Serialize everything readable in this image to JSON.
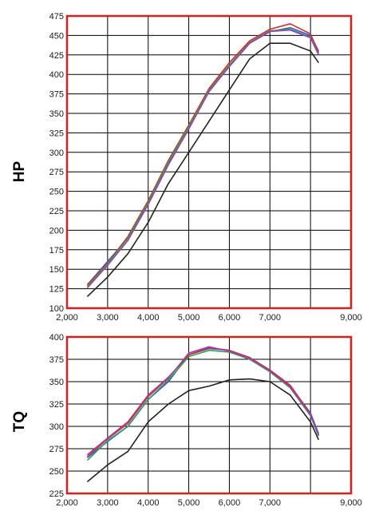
{
  "colors": {
    "frame": "#d62020",
    "grid": "#000000",
    "series": [
      "#222222",
      "#2a5fd6",
      "#d62a2a",
      "#3aa03a",
      "#9a3ec2"
    ]
  },
  "chart_data": [
    {
      "type": "line",
      "ylabel": "HP",
      "xlim": [
        2000,
        9000
      ],
      "ylim": [
        100,
        475
      ],
      "grid": true,
      "x_ticks": [
        2000,
        3000,
        4000,
        5000,
        6000,
        7000,
        8000,
        9000
      ],
      "x_tick_labels": [
        "2,000",
        "3,000",
        "4,000",
        "5,000",
        "6,000",
        "7,000",
        "",
        "9,000"
      ],
      "y_ticks": [
        100,
        125,
        150,
        175,
        200,
        225,
        250,
        275,
        300,
        325,
        350,
        375,
        400,
        425,
        450,
        475
      ],
      "y_tick_labels": [
        "100",
        "125",
        "150",
        "175",
        "200",
        "225",
        "250",
        "275",
        "300",
        "325",
        "350",
        "375",
        "400",
        "425",
        "450",
        "475"
      ],
      "x": [
        2500,
        3000,
        3500,
        4000,
        4500,
        5000,
        5500,
        6000,
        6500,
        7000,
        7500,
        8000,
        8200
      ],
      "series": [
        {
          "values": [
            115,
            140,
            170,
            210,
            260,
            300,
            340,
            380,
            420,
            440,
            440,
            430,
            415
          ]
        },
        {
          "values": [
            130,
            160,
            190,
            235,
            285,
            330,
            380,
            410,
            440,
            455,
            460,
            450,
            430
          ]
        },
        {
          "values": [
            130,
            158,
            192,
            238,
            290,
            335,
            382,
            415,
            443,
            458,
            465,
            452,
            428
          ]
        },
        {
          "values": [
            128,
            157,
            190,
            236,
            288,
            333,
            380,
            412,
            441,
            456,
            458,
            448,
            426
          ]
        },
        {
          "values": [
            126,
            155,
            187,
            233,
            284,
            330,
            378,
            410,
            440,
            455,
            457,
            447,
            425
          ]
        }
      ]
    },
    {
      "type": "line",
      "ylabel": "TQ",
      "xlim": [
        2000,
        9000
      ],
      "ylim": [
        225,
        400
      ],
      "grid": true,
      "x_ticks": [
        2000,
        3000,
        4000,
        5000,
        6000,
        7000,
        8000,
        9000
      ],
      "x_tick_labels": [
        "2,000",
        "3,000",
        "4,000",
        "5,000",
        "6,000",
        "7,000",
        "",
        "9,000"
      ],
      "y_ticks": [
        225,
        250,
        275,
        300,
        325,
        350,
        375,
        400
      ],
      "y_tick_labels": [
        "225",
        "250",
        "275",
        "300",
        "325",
        "350",
        "375",
        "400"
      ],
      "x": [
        2500,
        3000,
        3500,
        4000,
        4500,
        5000,
        5500,
        6000,
        6500,
        7000,
        7500,
        8000,
        8200
      ],
      "series": [
        {
          "values": [
            238,
            257,
            272,
            305,
            325,
            340,
            345,
            352,
            353,
            350,
            335,
            305,
            285
          ]
        },
        {
          "values": [
            265,
            283,
            300,
            330,
            350,
            380,
            387,
            385,
            375,
            362,
            345,
            315,
            292
          ]
        },
        {
          "values": [
            268,
            287,
            305,
            335,
            355,
            380,
            388,
            385,
            377,
            363,
            346,
            314,
            290
          ]
        },
        {
          "values": [
            262,
            284,
            300,
            330,
            352,
            378,
            385,
            383,
            375,
            361,
            343,
            312,
            289
          ]
        },
        {
          "values": [
            266,
            286,
            303,
            333,
            354,
            382,
            389,
            384,
            376,
            362,
            344,
            313,
            291
          ]
        }
      ]
    }
  ]
}
